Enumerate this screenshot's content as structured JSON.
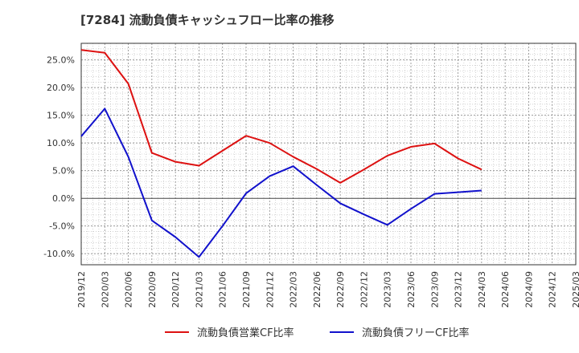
{
  "title": "[7284]  流動負債キャッシュフロー比率の推移",
  "chart_data": {
    "type": "line",
    "title": "[7284]  流動負債キャッシュフロー比率の推移",
    "xlabel": "",
    "ylabel": "",
    "x": [
      "2019/12",
      "2020/03",
      "2020/06",
      "2020/09",
      "2020/12",
      "2021/03",
      "2021/06",
      "2021/09",
      "2021/12",
      "2022/03",
      "2022/06",
      "2022/09",
      "2022/12",
      "2023/03",
      "2023/06",
      "2023/09",
      "2023/12",
      "2024/03",
      "2024/06",
      "2024/09",
      "2024/12",
      "2025/03"
    ],
    "ylim": [
      -12,
      28
    ],
    "yticks": [
      -10,
      -5,
      0,
      5,
      10,
      15,
      20,
      25
    ],
    "ytick_labels": [
      "-10.0%",
      "-5.0%",
      "0.0%",
      "5.0%",
      "10.0%",
      "15.0%",
      "20.0%",
      "25.0%"
    ],
    "grid": true,
    "legend_position": "bottom",
    "series": [
      {
        "name": "流動負債営業CF比率",
        "color": "#dd1111",
        "values": [
          26.8,
          26.3,
          20.7,
          8.2,
          6.6,
          5.9,
          8.6,
          11.3,
          10.0,
          7.5,
          5.3,
          2.8,
          5.2,
          7.7,
          9.3,
          9.9,
          7.2,
          5.2,
          null,
          null,
          null,
          null
        ]
      },
      {
        "name": "流動負債フリーCF比率",
        "color": "#1111cc",
        "values": [
          11.2,
          16.2,
          7.5,
          -4.0,
          -7.0,
          -10.6,
          -5.0,
          0.9,
          4.0,
          5.8,
          2.4,
          -0.9,
          -2.9,
          -4.8,
          -1.9,
          0.8,
          1.1,
          1.4,
          null,
          null,
          null,
          null
        ]
      }
    ]
  }
}
